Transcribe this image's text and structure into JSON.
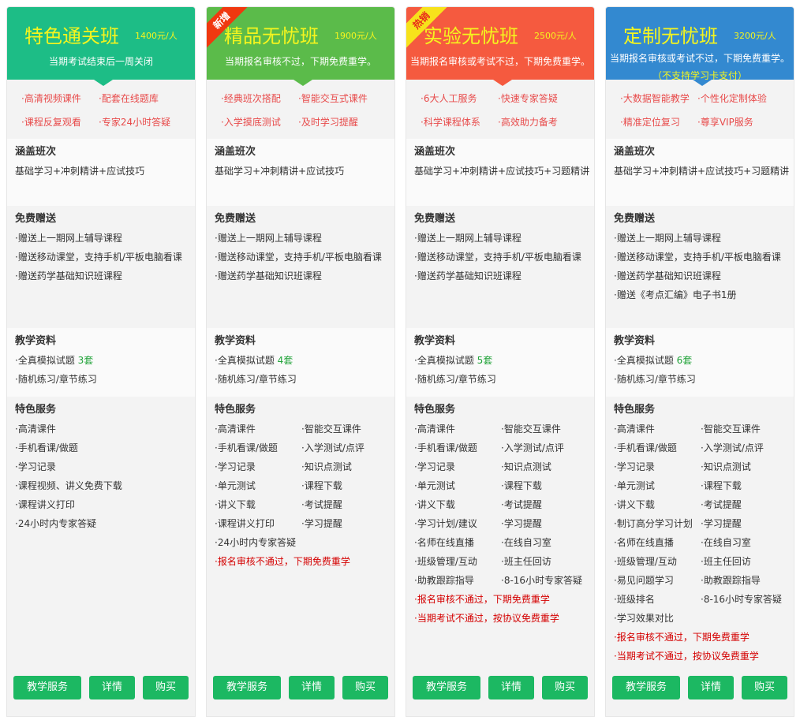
{
  "cards": [
    {
      "title": "特色通关班",
      "price": "1400元/人",
      "subtitle": "当期考试结束后一周关闭",
      "subtitle2": "",
      "badge": "",
      "color": "#1dbd86",
      "features": [
        "·高清视频课件",
        "·配套在线题库",
        "·课程反复观看",
        "·专家24小时答疑"
      ],
      "cover_label": "涵盖班次",
      "cover": "基础学习+冲刺精讲+应试技巧",
      "gift_label": "免费赠送",
      "gifts": [
        "·赠送上一期网上辅导课程",
        "·赠送移动课堂，支持手机/平板电脑看课",
        "·赠送药学基础知识班课程"
      ],
      "material_label": "教学资料",
      "material1": "·全真模拟试题 ",
      "material1_count": "3套",
      "material2": "·随机练习/章节练习",
      "service_label": "特色服务",
      "services_left": [
        "·高清课件",
        "·手机看课/做题",
        "·学习记录",
        "·课程视频、讲义免费下载",
        "·课程讲义打印",
        "·24小时内专家答疑"
      ],
      "services_right": [],
      "services_red": [],
      "buttons": [
        "教学服务",
        "详情",
        "购买"
      ]
    },
    {
      "title": "精品无忧班",
      "price": "1900元/人",
      "subtitle": "当期报名审核不过，下期免费重学。",
      "subtitle2": "",
      "badge": "新增",
      "color": "#5bbb4a",
      "badge_color": "#f0380f",
      "badge_text_color": "#ffffff",
      "features": [
        "·经典班次搭配",
        "·智能交互式课件",
        "·入学摸底测试",
        "·及时学习提醒"
      ],
      "cover_label": "涵盖班次",
      "cover": "基础学习+冲刺精讲+应试技巧",
      "gift_label": "免费赠送",
      "gifts": [
        "·赠送上一期网上辅导课程",
        "·赠送移动课堂，支持手机/平板电脑看课",
        "·赠送药学基础知识班课程"
      ],
      "material_label": "教学资料",
      "material1": "·全真模拟试题 ",
      "material1_count": "4套",
      "material2": "·随机练习/章节练习",
      "service_label": "特色服务",
      "services_left": [
        "·高清课件",
        "·手机看课/做题",
        "·学习记录",
        "·单元测试",
        "·讲义下载",
        "·课程讲义打印",
        "·24小时内专家答疑"
      ],
      "services_right": [
        "·智能交互课件",
        "·入学测试/点评",
        "·知识点测试",
        "·课程下载",
        "·考试提醒",
        "·学习提醒"
      ],
      "services_red": [
        "·报名审核不通过，下期免费重学"
      ],
      "buttons": [
        "教学服务",
        "详情",
        "购买"
      ]
    },
    {
      "title": "实验无忧班",
      "price": "2500元/人",
      "subtitle": "当期报名审核或考试不过，下期免费重学。",
      "subtitle2": "",
      "badge": "热销",
      "color": "#f55a3f",
      "badge_color": "#f7e21b",
      "badge_text_color": "#e8271b",
      "features": [
        "·6大人工服务",
        "·快速专家答疑",
        "·科学课程体系",
        "·高效助力备考"
      ],
      "cover_label": "涵盖班次",
      "cover": "基础学习+冲刺精讲+应试技巧+习题精讲",
      "gift_label": "免费赠送",
      "gifts": [
        "·赠送上一期网上辅导课程",
        "·赠送移动课堂，支持手机/平板电脑看课",
        "·赠送药学基础知识班课程"
      ],
      "material_label": "教学资料",
      "material1": "·全真模拟试题 ",
      "material1_count": "5套",
      "material2": "·随机练习/章节练习",
      "service_label": "特色服务",
      "services_left": [
        "·高清课件",
        "·手机看课/做题",
        "·学习记录",
        "·单元测试",
        "·讲义下载",
        "·学习计划/建议",
        "·名师在线直播",
        "·班级管理/互动",
        "·助教跟踪指导"
      ],
      "services_right": [
        "·智能交互课件",
        "·入学测试/点评",
        "·知识点测试",
        "·课程下载",
        "·考试提醒",
        "·学习提醒",
        "·在线自习室",
        "·班主任回访",
        "·8-16小时专家答疑"
      ],
      "services_red": [
        "·报名审核不通过，下期免费重学",
        "·当期考试不通过，按协议免费重学"
      ],
      "buttons": [
        "教学服务",
        "详情",
        "购买"
      ]
    },
    {
      "title": "定制无忧班",
      "price": "3200元/人",
      "subtitle": "当期报名审核或考试不过，下期免费重学。",
      "subtitle2": "（不支持学习卡支付）",
      "badge": "",
      "color": "#3389d0",
      "features": [
        "·大数据智能教学",
        "·个性化定制体验",
        "·精准定位复习",
        "·尊享VIP服务"
      ],
      "cover_label": "涵盖班次",
      "cover": "基础学习+冲刺精讲+应试技巧+习题精讲",
      "gift_label": "免费赠送",
      "gifts": [
        "·赠送上一期网上辅导课程",
        "·赠送移动课堂，支持手机/平板电脑看课",
        "·赠送药学基础知识班课程",
        "·赠送《考点汇编》电子书1册"
      ],
      "material_label": "教学资料",
      "material1": "·全真模拟试题 ",
      "material1_count": "6套",
      "material2": "·随机练习/章节练习",
      "service_label": "特色服务",
      "services_left": [
        "·高清课件",
        "·手机看课/做题",
        "·学习记录",
        "·单元测试",
        "·讲义下载",
        "·制订高分学习计划",
        "·名师在线直播",
        "·班级管理/互动",
        "·易见问题学习",
        "·班级排名",
        "·学习效果对比"
      ],
      "services_right": [
        "·智能交互课件",
        "·入学测试/点评",
        "·知识点测试",
        "·课程下载",
        "·考试提醒",
        "·学习提醒",
        "·在线自习室",
        "·班主任回访",
        "·助教跟踪指导",
        "·8-16小时专家答疑"
      ],
      "services_red": [
        "·报名审核不通过，下期免费重学",
        "·当期考试不通过，按协议免费重学"
      ],
      "buttons": [
        "教学服务",
        "详情",
        "购买"
      ]
    }
  ]
}
